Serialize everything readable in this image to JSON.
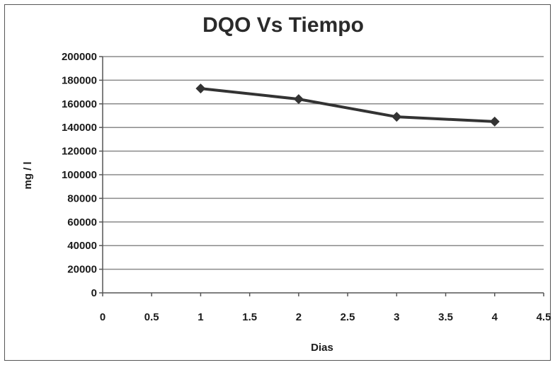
{
  "chart_data": {
    "type": "scatter",
    "title": "DQO  Vs Tiempo",
    "xlabel": "Dias",
    "ylabel": "mg / l",
    "xlim": [
      0,
      4.5
    ],
    "ylim": [
      0,
      200000
    ],
    "x_ticks": [
      "0",
      "0.5",
      "1",
      "1.5",
      "2",
      "2.5",
      "3",
      "3.5",
      "4",
      "4.5"
    ],
    "y_ticks": [
      "0",
      "20000",
      "40000",
      "60000",
      "80000",
      "100000",
      "120000",
      "140000",
      "160000",
      "180000",
      "200000"
    ],
    "grid": "horizontal",
    "series": [
      {
        "x": [
          1,
          2,
          3,
          4
        ],
        "values": [
          173000,
          164000,
          149000,
          145000
        ],
        "color": "#333333",
        "marker": "diamond",
        "line": true
      }
    ]
  }
}
